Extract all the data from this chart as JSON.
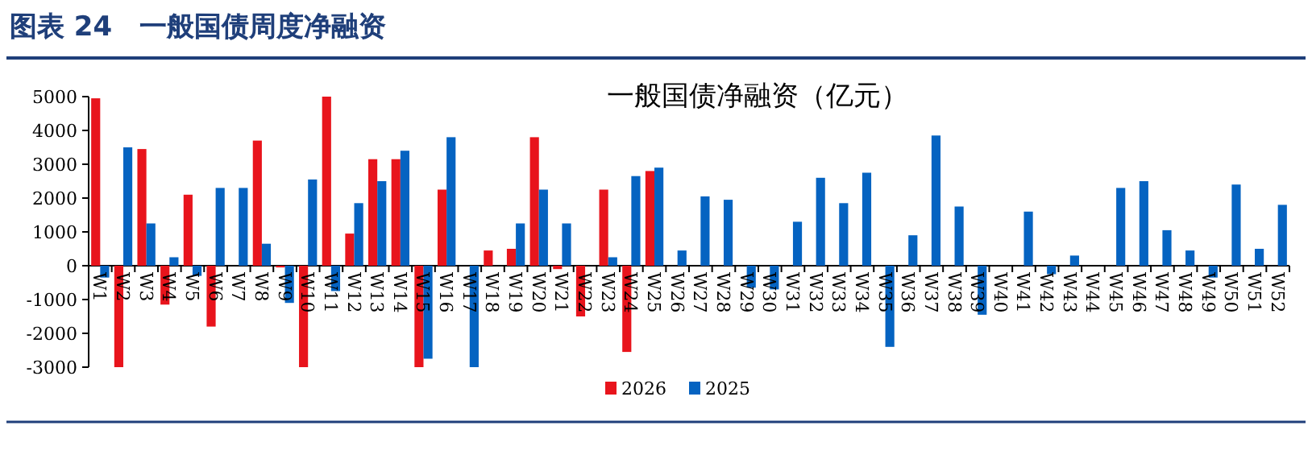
{
  "chart_data": {
    "type": "bar",
    "title": "图表 24　一般国债周度净融资",
    "subtitle": "一般国债净融资（亿元）",
    "categories": [
      "W1",
      "W2",
      "W3",
      "W4",
      "W5",
      "W6",
      "W7",
      "W8",
      "W9",
      "W10",
      "W11",
      "W12",
      "W13",
      "W14",
      "W15",
      "W16",
      "W17",
      "W18",
      "W19",
      "W20",
      "W21",
      "W22",
      "W23",
      "W24",
      "W25",
      "W26",
      "W27",
      "W28",
      "W29",
      "W30",
      "W31",
      "W32",
      "W33",
      "W34",
      "W35",
      "W36",
      "W37",
      "W38",
      "W39",
      "W40",
      "W41",
      "W42",
      "W43",
      "W44",
      "W45",
      "W46",
      "W47",
      "W48",
      "W49",
      "W50",
      "W51",
      "W52"
    ],
    "series": [
      {
        "name": "2026",
        "color": "#e8141c",
        "values": [
          4950,
          -3000,
          3450,
          -1150,
          2100,
          -1800,
          0,
          3700,
          -50,
          -3000,
          5000,
          950,
          3150,
          3150,
          -3000,
          2250,
          0,
          450,
          500,
          3800,
          -100,
          -1500,
          2250,
          -2550,
          2800,
          null,
          null,
          null,
          null,
          null,
          null,
          null,
          null,
          null,
          null,
          null,
          null,
          null,
          null,
          null,
          null,
          null,
          null,
          null,
          null,
          null,
          null,
          null,
          null,
          null,
          null,
          null
        ]
      },
      {
        "name": "2025",
        "color": "#0563c1",
        "values": [
          -350,
          3500,
          1250,
          250,
          -300,
          2300,
          2300,
          650,
          -1100,
          2550,
          -750,
          1850,
          2500,
          3400,
          -2750,
          3800,
          -3000,
          0,
          1250,
          2250,
          1250,
          0,
          250,
          2650,
          2900,
          450,
          2050,
          1950,
          -650,
          -700,
          1300,
          2600,
          1850,
          2750,
          -2400,
          900,
          3850,
          1750,
          -1450,
          0,
          1600,
          -250,
          300,
          0,
          2300,
          2500,
          1050,
          450,
          -350,
          2400,
          500,
          1800
        ]
      }
    ],
    "ylim": [
      -3000,
      5000
    ],
    "yticks": [
      -3000,
      -2000,
      -1000,
      0,
      1000,
      2000,
      3000,
      4000,
      5000
    ],
    "legend": "bottom",
    "grid": false
  }
}
